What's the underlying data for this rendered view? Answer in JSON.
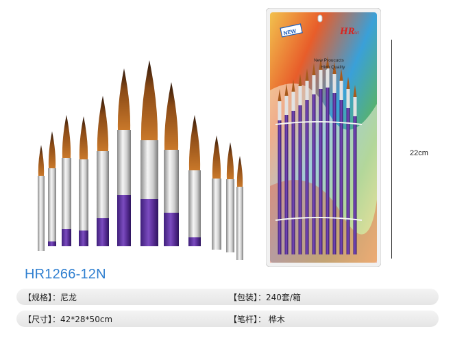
{
  "product": {
    "model": "HR1266-12N",
    "height_label": "22cm"
  },
  "specs": [
    {
      "label": "【规格】",
      "value": "：尼龙"
    },
    {
      "label": "【包装】",
      "value": "：240套/箱"
    },
    {
      "label": "【尺寸】",
      "value": "：42*28*50cm"
    },
    {
      "label": "【笔杆】",
      "value": "：  桦木"
    }
  ],
  "package_card": {
    "badge": "NEW",
    "brand": "HR",
    "brand_suffix": "Art",
    "tagline1": "New Proucucts",
    "tagline2": "High Quality"
  },
  "colors": {
    "handle": "#6a3aa8",
    "ferrule": "#d9d9d9",
    "bristle": "#b5651d",
    "model_text": "#2f7fd0"
  },
  "icons": [
    "brush-set-image",
    "packaged-brush-image",
    "dimension-line"
  ]
}
